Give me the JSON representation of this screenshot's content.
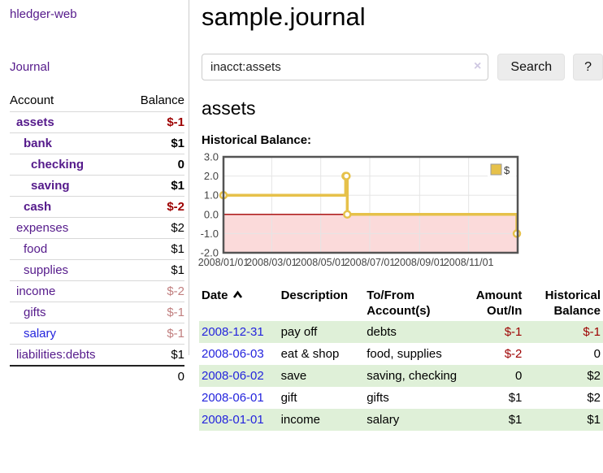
{
  "sidebar": {
    "app_title": "hledger-web",
    "nav": {
      "journal_label": "Journal"
    },
    "accounts_table": {
      "headers": {
        "account": "Account",
        "balance": "Balance"
      },
      "rows": [
        {
          "name": "assets",
          "balance": "$-1",
          "level": 1,
          "bold": true,
          "balance_style": "neg-strong",
          "link_style": "visited"
        },
        {
          "name": "bank",
          "balance": "$1",
          "level": 2,
          "bold": true,
          "balance_style": "normal",
          "link_style": "visited"
        },
        {
          "name": "checking",
          "balance": "0",
          "level": 3,
          "bold": true,
          "balance_style": "normal",
          "link_style": "visited"
        },
        {
          "name": "saving",
          "balance": "$1",
          "level": 3,
          "bold": true,
          "balance_style": "normal",
          "link_style": "visited"
        },
        {
          "name": "cash",
          "balance": "$-2",
          "level": 2,
          "bold": true,
          "balance_style": "neg-strong",
          "link_style": "visited"
        },
        {
          "name": "expenses",
          "balance": "$2",
          "level": 1,
          "bold": false,
          "balance_style": "normal",
          "link_style": "visited"
        },
        {
          "name": "food",
          "balance": "$1",
          "level": 2,
          "bold": false,
          "balance_style": "normal",
          "link_style": "visited"
        },
        {
          "name": "supplies",
          "balance": "$1",
          "level": 2,
          "bold": false,
          "balance_style": "normal",
          "link_style": "visited"
        },
        {
          "name": "income",
          "balance": "$-2",
          "level": 1,
          "bold": false,
          "balance_style": "neg-muted",
          "link_style": "visited"
        },
        {
          "name": "gifts",
          "balance": "$-1",
          "level": 2,
          "bold": false,
          "balance_style": "neg-muted",
          "link_style": "visited"
        },
        {
          "name": "salary",
          "balance": "$-1",
          "level": 2,
          "bold": false,
          "balance_style": "neg-muted",
          "link_style": "unvisited"
        },
        {
          "name": "liabilities:debts",
          "balance": "$1",
          "level": 1,
          "bold": false,
          "balance_style": "normal",
          "link_style": "visited"
        }
      ],
      "total": "0"
    }
  },
  "main": {
    "title": "sample.journal",
    "search": {
      "value": "inacct:assets",
      "clear_icon": "×",
      "button_label": "Search",
      "help_label": "?"
    },
    "account_heading": "assets",
    "chart_heading": "Historical Balance:",
    "register_table": {
      "headers": {
        "date": "Date",
        "description": "Description",
        "accounts_line1": "To/From",
        "accounts_line2": "Account(s)",
        "amount_line1": "Amount",
        "amount_line2": "Out/In",
        "balance_line1": "Historical",
        "balance_line2": "Balance"
      },
      "rows": [
        {
          "date": "2008-12-31",
          "description": "pay off",
          "accounts": "debts",
          "amount": "$-1",
          "amount_style": "neg-strong",
          "balance": "$-1",
          "balance_style": "neg-strong"
        },
        {
          "date": "2008-06-03",
          "description": "eat & shop",
          "accounts": "food, supplies",
          "amount": "$-2",
          "amount_style": "neg-strong",
          "balance": "0",
          "balance_style": "normal"
        },
        {
          "date": "2008-06-02",
          "description": "save",
          "accounts": "saving, checking",
          "amount": "0",
          "amount_style": "normal",
          "balance": "$2",
          "balance_style": "normal"
        },
        {
          "date": "2008-06-01",
          "description": "gift",
          "accounts": "gifts",
          "amount": "$1",
          "amount_style": "normal",
          "balance": "$2",
          "balance_style": "normal"
        },
        {
          "date": "2008-01-01",
          "description": "income",
          "accounts": "salary",
          "amount": "$1",
          "amount_style": "normal",
          "balance": "$1",
          "balance_style": "normal"
        }
      ]
    }
  },
  "chart_data": {
    "type": "line",
    "title": "Historical Balance",
    "step": true,
    "x_range": [
      "2008-01-01",
      "2009-01-01"
    ],
    "ylim": [
      -2,
      3
    ],
    "y_ticks": [
      3.0,
      2.0,
      1.0,
      0.0,
      -1.0,
      -2.0
    ],
    "x_ticks": [
      {
        "date": "2008-01-01",
        "label": "2008/01/01"
      },
      {
        "date": "2008-03-01",
        "label": "2008/03/01"
      },
      {
        "date": "2008-05-01",
        "label": "2008/05/01"
      },
      {
        "date": "2008-07-01",
        "label": "2008/07/01"
      },
      {
        "date": "2008-09-01",
        "label": "2008/09/01"
      },
      {
        "date": "2008-11-01",
        "label": "2008/11/01"
      }
    ],
    "series": [
      {
        "name": "$",
        "color": "#e6c14a",
        "points": [
          [
            "2008-01-01",
            1
          ],
          [
            "2008-06-01",
            2
          ],
          [
            "2008-06-02",
            2
          ],
          [
            "2008-06-03",
            0
          ],
          [
            "2008-12-31",
            -1
          ]
        ]
      }
    ],
    "legend_position": "top-right",
    "grid": true,
    "colors": {
      "grid": "#e5e5e5",
      "border": "#545454",
      "zero_line": "#a40000",
      "negative_fill": "#fbdada",
      "tick_text": "#444444"
    }
  }
}
